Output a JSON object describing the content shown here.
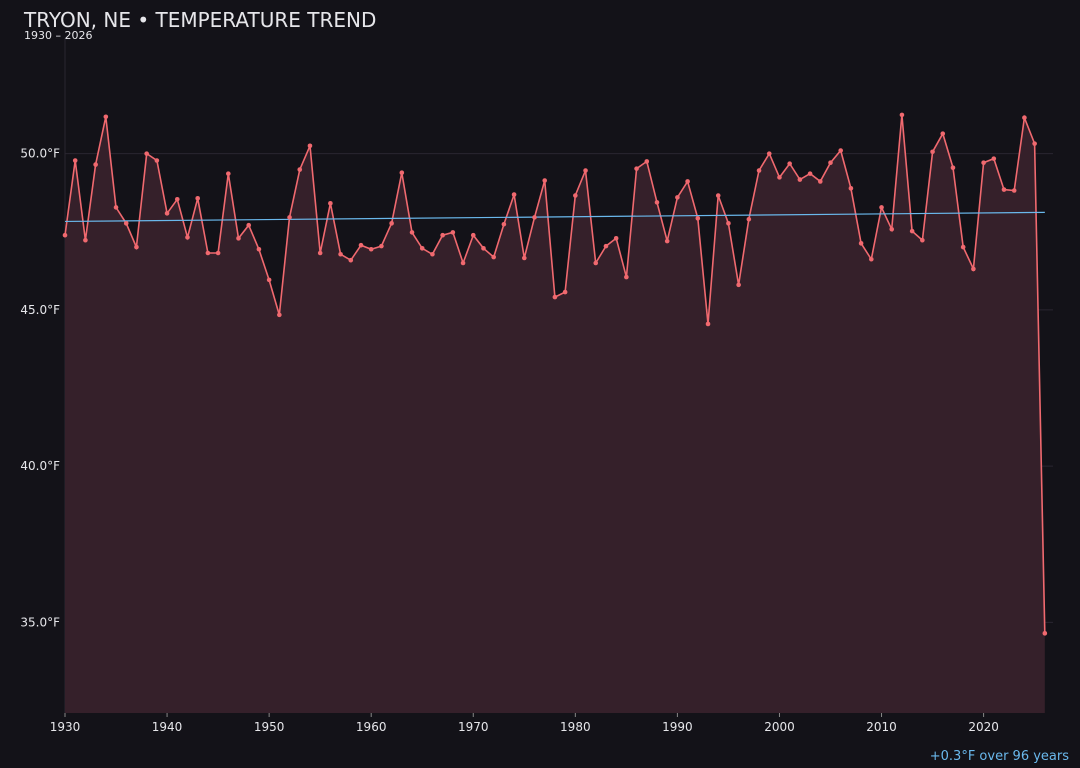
{
  "chart_data": {
    "type": "line",
    "title": "TRYON, NE • TEMPERATURE TREND",
    "subtitle": "1930 – 2026",
    "annotation": "+0.3°F over 96 years",
    "x": [
      1930,
      1931,
      1932,
      1933,
      1934,
      1935,
      1936,
      1937,
      1938,
      1939,
      1940,
      1941,
      1942,
      1943,
      1944,
      1945,
      1946,
      1947,
      1948,
      1949,
      1950,
      1951,
      1952,
      1953,
      1954,
      1955,
      1956,
      1957,
      1958,
      1959,
      1960,
      1961,
      1962,
      1963,
      1964,
      1965,
      1966,
      1967,
      1968,
      1969,
      1970,
      1971,
      1972,
      1973,
      1974,
      1975,
      1976,
      1977,
      1978,
      1979,
      1980,
      1981,
      1982,
      1983,
      1984,
      1985,
      1986,
      1987,
      1988,
      1989,
      1990,
      1991,
      1992,
      1993,
      1994,
      1995,
      1996,
      1997,
      1998,
      1999,
      2000,
      2001,
      2002,
      2003,
      2004,
      2005,
      2006,
      2007,
      2008,
      2009,
      2010,
      2011,
      2012,
      2013,
      2014,
      2015,
      2016,
      2017,
      2018,
      2019,
      2020,
      2021,
      2022,
      2023,
      2024,
      2025,
      2026
    ],
    "values": [
      47.39,
      49.78,
      47.23,
      49.65,
      51.18,
      48.28,
      47.77,
      47.01,
      50.0,
      49.78,
      48.09,
      48.54,
      47.32,
      48.57,
      46.82,
      46.82,
      49.36,
      47.29,
      47.71,
      46.94,
      45.96,
      44.84,
      47.96,
      49.49,
      50.25,
      46.82,
      48.41,
      46.78,
      46.59,
      47.07,
      46.94,
      47.04,
      47.77,
      49.39,
      47.48,
      46.97,
      46.78,
      47.39,
      47.48,
      46.5,
      47.39,
      46.97,
      46.69,
      47.74,
      48.69,
      46.66,
      47.96,
      49.14,
      45.41,
      45.57,
      48.66,
      49.46,
      46.5,
      47.04,
      47.29,
      46.05,
      49.52,
      49.75,
      48.44,
      47.2,
      48.6,
      49.11,
      47.93,
      44.55,
      48.66,
      47.77,
      45.8,
      47.9,
      49.46,
      50.0,
      49.24,
      49.68,
      49.17,
      49.36,
      49.11,
      49.71,
      50.1,
      48.89,
      47.13,
      46.62,
      48.28,
      47.58,
      51.24,
      47.52,
      47.23,
      50.06,
      50.64,
      49.55,
      47.01,
      46.31,
      49.71,
      49.84,
      48.85,
      48.82,
      51.15,
      50.32,
      34.65
    ],
    "color": "#f0696f",
    "fill_color": "#35202a",
    "trend": {
      "x": [
        1930,
        2026
      ],
      "values": [
        47.83,
        48.12
      ],
      "color": "#6ab8ec"
    },
    "xlim": [
      1930,
      2026.8
    ],
    "xticks": [
      1930,
      1940,
      1950,
      1960,
      1970,
      1980,
      1990,
      2000,
      2010,
      2020
    ],
    "ylim": [
      32.1,
      53.7
    ],
    "yticks": [
      {
        "value": 35,
        "label": "35.0°F"
      },
      {
        "value": 40,
        "label": "40.0°F"
      },
      {
        "value": 45,
        "label": "45.0°F"
      },
      {
        "value": 50,
        "label": "50.0°F"
      }
    ],
    "grid": true
  }
}
